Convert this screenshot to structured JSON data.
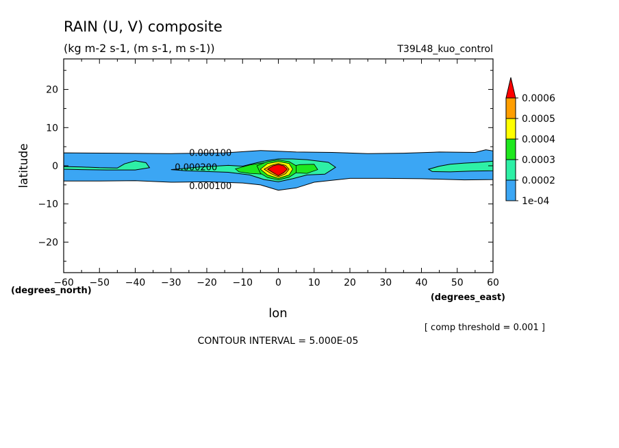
{
  "chart_data": {
    "type": "contour",
    "title": "RAIN (U, V) composite",
    "subtitle": "(kg m-2 s-1, (m s-1, m s-1))",
    "run_label": "T39L48_kuo_control",
    "xlabel": "lon",
    "ylabel": "latitude",
    "x_unit": "(degrees_east)",
    "y_unit": "(degrees_north)",
    "xlim": [
      -60,
      60
    ],
    "ylim": [
      -28,
      28
    ],
    "x_ticks": [
      -60,
      -50,
      -40,
      -30,
      -20,
      -10,
      0,
      10,
      20,
      30,
      40,
      50,
      60
    ],
    "y_ticks": [
      -20,
      -10,
      0,
      10,
      20
    ],
    "colorbar": {
      "labels": [
        "1e-04",
        "0.0002",
        "0.0003",
        "0.0004",
        "0.0005",
        "0.0006"
      ],
      "colors": [
        "#3ba6f4",
        "#2ef0a6",
        "#1ee81e",
        "#ffff00",
        "#ff9e00",
        "#ff0000"
      ]
    },
    "contour_labels": [
      {
        "text": "0.000100",
        "lon": -19,
        "lat": 3.5
      },
      {
        "text": "0.000200",
        "lon": -23,
        "lat": -0.3
      },
      {
        "text": "0.000100",
        "lon": -19,
        "lat": -5.2
      }
    ],
    "fill_regions": [
      {
        "level": 1,
        "points": [
          [
            -60,
            3.4
          ],
          [
            -45,
            3.3
          ],
          [
            -30,
            3.2
          ],
          [
            -15,
            3.4
          ],
          [
            -5,
            4.0
          ],
          [
            0,
            3.8
          ],
          [
            5,
            3.6
          ],
          [
            15,
            3.5
          ],
          [
            25,
            3.2
          ],
          [
            35,
            3.3
          ],
          [
            45,
            3.6
          ],
          [
            55,
            3.5
          ],
          [
            58,
            4.2
          ],
          [
            60,
            3.9
          ],
          [
            60,
            -3.6
          ],
          [
            52,
            -3.7
          ],
          [
            40,
            -3.4
          ],
          [
            30,
            -3.3
          ],
          [
            20,
            -3.3
          ],
          [
            10,
            -4.3
          ],
          [
            5,
            -5.8
          ],
          [
            0,
            -6.4
          ],
          [
            -5,
            -5.0
          ],
          [
            -10,
            -4.5
          ],
          [
            -20,
            -4.2
          ],
          [
            -30,
            -4.3
          ],
          [
            -40,
            -3.9
          ],
          [
            -50,
            -4.0
          ],
          [
            -60,
            -4.0
          ]
        ]
      },
      {
        "level": 2,
        "points": [
          [
            -60,
            -0.2
          ],
          [
            -55,
            -0.3
          ],
          [
            -50,
            -0.5
          ],
          [
            -45,
            -0.6
          ],
          [
            -43,
            0.5
          ],
          [
            -40,
            1.3
          ],
          [
            -37,
            0.8
          ],
          [
            -36,
            -0.5
          ],
          [
            -40,
            -1.1
          ],
          [
            -48,
            -1.1
          ],
          [
            -55,
            -1.0
          ],
          [
            -60,
            -0.9
          ]
        ]
      },
      {
        "level": 2,
        "points": [
          [
            -30,
            -1.0
          ],
          [
            -22,
            -0.3
          ],
          [
            -14,
            0.1
          ],
          [
            -10,
            -0.1
          ],
          [
            -6,
            0.8
          ],
          [
            -3,
            1.4
          ],
          [
            0,
            1.8
          ],
          [
            4,
            1.8
          ],
          [
            8,
            1.6
          ],
          [
            14,
            0.9
          ],
          [
            16,
            -0.4
          ],
          [
            13,
            -2.2
          ],
          [
            8,
            -2.4
          ],
          [
            4,
            -3.4
          ],
          [
            0,
            -4.2
          ],
          [
            -4,
            -3.6
          ],
          [
            -8,
            -2.4
          ],
          [
            -14,
            -1.7
          ],
          [
            -20,
            -1.5
          ],
          [
            -26,
            -1.3
          ]
        ]
      },
      {
        "level": 2,
        "points": [
          [
            42,
            -0.9
          ],
          [
            45,
            -0.1
          ],
          [
            48,
            0.4
          ],
          [
            52,
            0.7
          ],
          [
            56,
            0.9
          ],
          [
            60,
            1.2
          ],
          [
            60,
            -1.3
          ],
          [
            54,
            -1.4
          ],
          [
            48,
            -1.6
          ],
          [
            43,
            -1.5
          ]
        ]
      },
      {
        "level": 3,
        "points": [
          [
            -12,
            -0.8
          ],
          [
            -8,
            0.2
          ],
          [
            -4,
            0.8
          ],
          [
            -2,
            -0.7
          ],
          [
            -4,
            -2.2
          ],
          [
            -8,
            -2.0
          ],
          [
            -11,
            -1.6
          ]
        ]
      },
      {
        "level": 3,
        "points": [
          [
            3,
            -0.3
          ],
          [
            6,
            0.3
          ],
          [
            10,
            0.4
          ],
          [
            11,
            -1.0
          ],
          [
            8,
            -2.0
          ],
          [
            4,
            -1.8
          ]
        ]
      },
      {
        "level": 3,
        "points": [
          [
            -6,
            0.0
          ],
          [
            -3,
            1.1
          ],
          [
            0,
            1.5
          ],
          [
            3,
            1.1
          ],
          [
            5,
            0.0
          ],
          [
            5,
            -1.8
          ],
          [
            3,
            -3.0
          ],
          [
            0,
            -3.7
          ],
          [
            -3,
            -3.1
          ],
          [
            -5,
            -2.0
          ]
        ]
      },
      {
        "level": 4,
        "points": [
          [
            -5,
            -0.9
          ],
          [
            -3,
            0.6
          ],
          [
            0,
            1.1
          ],
          [
            3,
            0.6
          ],
          [
            4,
            -0.9
          ],
          [
            3,
            -2.4
          ],
          [
            0,
            -3.3
          ],
          [
            -3,
            -2.4
          ]
        ]
      },
      {
        "level": 5,
        "points": [
          [
            -4,
            -0.9
          ],
          [
            -2,
            0.1
          ],
          [
            0,
            0.6
          ],
          [
            2,
            0.1
          ],
          [
            3,
            -0.9
          ],
          [
            2,
            -2.1
          ],
          [
            0,
            -2.9
          ],
          [
            -2,
            -2.1
          ]
        ]
      },
      {
        "level": 6,
        "points": [
          [
            -3,
            -0.9
          ],
          [
            -1.5,
            0.0
          ],
          [
            0,
            0.3
          ],
          [
            1.5,
            0.0
          ],
          [
            2.5,
            -0.9
          ],
          [
            1.5,
            -1.8
          ],
          [
            0,
            -2.6
          ],
          [
            -1.5,
            -1.8
          ]
        ]
      }
    ],
    "contour_interval": "CONTOUR INTERVAL = 5.000E-05",
    "comp_threshold": "[ comp threshold = 0.001 ]"
  }
}
